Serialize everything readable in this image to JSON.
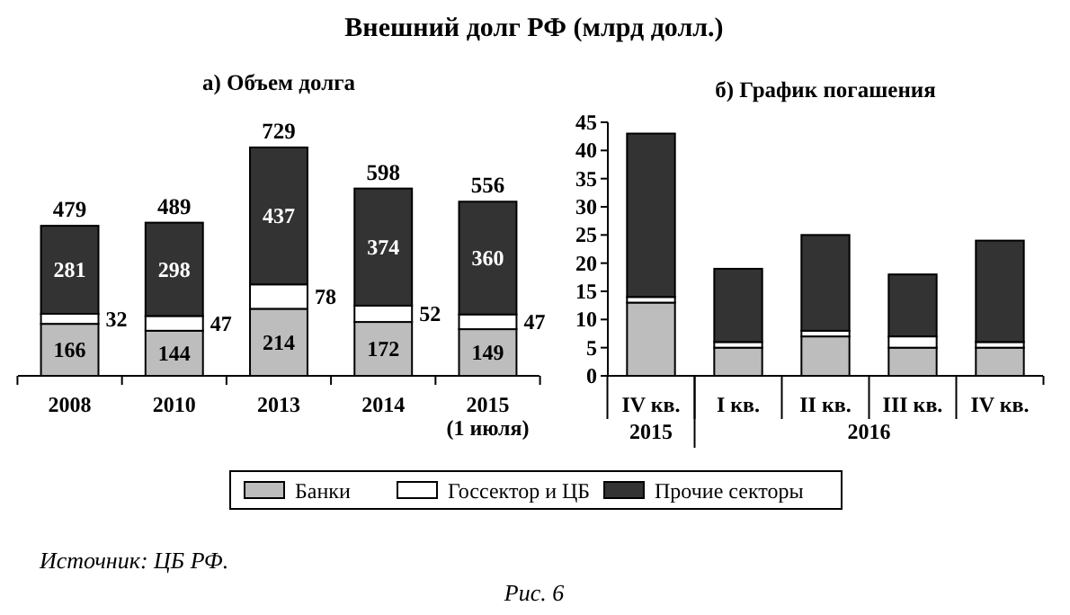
{
  "chart_data": [
    {
      "type": "bar",
      "title": "а) Объем долга",
      "stacked": true,
      "data_labels": true,
      "legend": "bottom",
      "categories": [
        "2008",
        "2010",
        "2013",
        "2014",
        "2015 (1 июля)"
      ],
      "series": [
        {
          "name": "Банки",
          "color": "#bdbdbd",
          "values": [
            166,
            144,
            214,
            172,
            149
          ]
        },
        {
          "name": "Госсектор и ЦБ",
          "color": "#ffffff",
          "values": [
            32,
            47,
            78,
            52,
            47
          ]
        },
        {
          "name": "Прочие секторы",
          "color": "#333333",
          "values": [
            281,
            298,
            437,
            374,
            360
          ]
        }
      ],
      "totals": [
        "479",
        "489",
        "729",
        "598",
        "556"
      ],
      "annotations": [
        "Внешний долг РФ (млрд долл.)",
        "Источник: ЦБ РФ.",
        "Рис. 6"
      ]
    },
    {
      "type": "bar",
      "title": "б) График погашения",
      "stacked": true,
      "categories": [
        "IV кв.",
        "I кв.",
        "II кв.",
        "III кв.",
        "IV кв."
      ],
      "series": [
        {
          "color": "#bdbdbd",
          "values": [
            13,
            5,
            7,
            5,
            5
          ]
        },
        {
          "color": "#ffffff",
          "values": [
            1,
            1,
            1,
            2,
            1
          ]
        },
        {
          "color": "#333333",
          "values": [
            29,
            13,
            17,
            11,
            18
          ]
        }
      ],
      "ylim": [
        0,
        45
      ],
      "yticks": [
        0,
        5,
        10,
        15,
        20,
        25,
        30,
        35,
        40,
        45
      ],
      "annotations": [
        "2015",
        "2016"
      ]
    }
  ]
}
